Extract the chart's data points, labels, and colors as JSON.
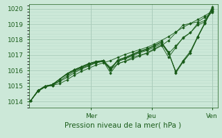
{
  "title": "",
  "xlabel": "Pression niveau de la mer( hPa )",
  "bg_color": "#cce8d8",
  "grid_major_color": "#aaccbb",
  "grid_minor_color": "#bbddcc",
  "line_color": "#1a5c1a",
  "marker_color": "#1a5c1a",
  "ylim": [
    1013.6,
    1020.3
  ],
  "ytick_major": [
    1014,
    1015,
    1016,
    1017,
    1018,
    1019,
    1020
  ],
  "xtick_positions": [
    0.0,
    0.333,
    0.667,
    1.0
  ],
  "xtick_labels": [
    "Mer",
    "Jeu",
    "Ven"
  ],
  "series": [
    [
      1014.05,
      1014.7,
      1015.0,
      1015.05,
      1015.15,
      1015.4,
      1015.7,
      1015.95,
      1016.15,
      1016.35,
      1016.5,
      1016.65,
      1016.85,
      1017.05,
      1017.2,
      1017.35,
      1017.5,
      1017.7,
      1017.95,
      1018.2,
      1018.5,
      1018.8,
      1019.05,
      1019.3,
      1019.55,
      1019.85
    ],
    [
      1014.05,
      1014.7,
      1015.0,
      1015.05,
      1015.3,
      1015.55,
      1015.85,
      1016.1,
      1016.3,
      1016.5,
      1016.6,
      1015.85,
      1016.45,
      1016.6,
      1016.85,
      1017.0,
      1017.1,
      1017.35,
      1017.6,
      1017.95,
      1018.45,
      1018.95,
      1019.05,
      1019.15,
      1019.45,
      1019.75
    ],
    [
      1014.05,
      1014.65,
      1014.95,
      1015.05,
      1015.35,
      1015.65,
      1015.95,
      1016.15,
      1016.35,
      1016.5,
      1016.6,
      1016.05,
      1016.45,
      1016.6,
      1016.75,
      1016.95,
      1017.15,
      1017.4,
      1017.65,
      1016.85,
      1017.5,
      1018.15,
      1018.45,
      1018.95,
      1019.15,
      1019.85
    ],
    [
      1014.05,
      1014.65,
      1014.95,
      1015.05,
      1015.45,
      1015.8,
      1016.05,
      1016.25,
      1016.45,
      1016.6,
      1016.65,
      1016.2,
      1016.6,
      1016.75,
      1016.95,
      1017.15,
      1017.3,
      1017.5,
      1017.75,
      1017.1,
      1017.6,
      1018.1,
      1018.45,
      1019.05,
      1019.25,
      1019.95
    ],
    [
      1014.05,
      1014.7,
      1015.0,
      1015.1,
      1015.45,
      1015.75,
      1016.0,
      1016.2,
      1016.4,
      1016.55,
      1016.65,
      1016.05,
      1016.65,
      1016.8,
      1017.05,
      1017.25,
      1017.4,
      1017.6,
      1017.85,
      1017.2,
      1015.85,
      1016.55,
      1017.15,
      1018.15,
      1019.05,
      1020.05
    ],
    [
      1014.05,
      1014.7,
      1014.95,
      1015.1,
      1015.45,
      1015.8,
      1016.05,
      1016.25,
      1016.45,
      1016.55,
      1016.65,
      1016.1,
      1016.7,
      1016.85,
      1017.05,
      1017.25,
      1017.4,
      1017.6,
      1017.85,
      1017.15,
      1015.9,
      1016.65,
      1017.25,
      1018.2,
      1019.1,
      1020.1
    ],
    [
      1014.05,
      1014.7,
      1015.0,
      1015.1,
      1015.45,
      1015.8,
      1016.05,
      1016.25,
      1016.45,
      1016.55,
      1016.65,
      1016.1,
      1016.65,
      1016.8,
      1017.0,
      1017.2,
      1017.35,
      1017.6,
      1017.85,
      1017.15,
      1015.95,
      1016.6,
      1017.15,
      1018.15,
      1019.05,
      1020.0
    ]
  ]
}
